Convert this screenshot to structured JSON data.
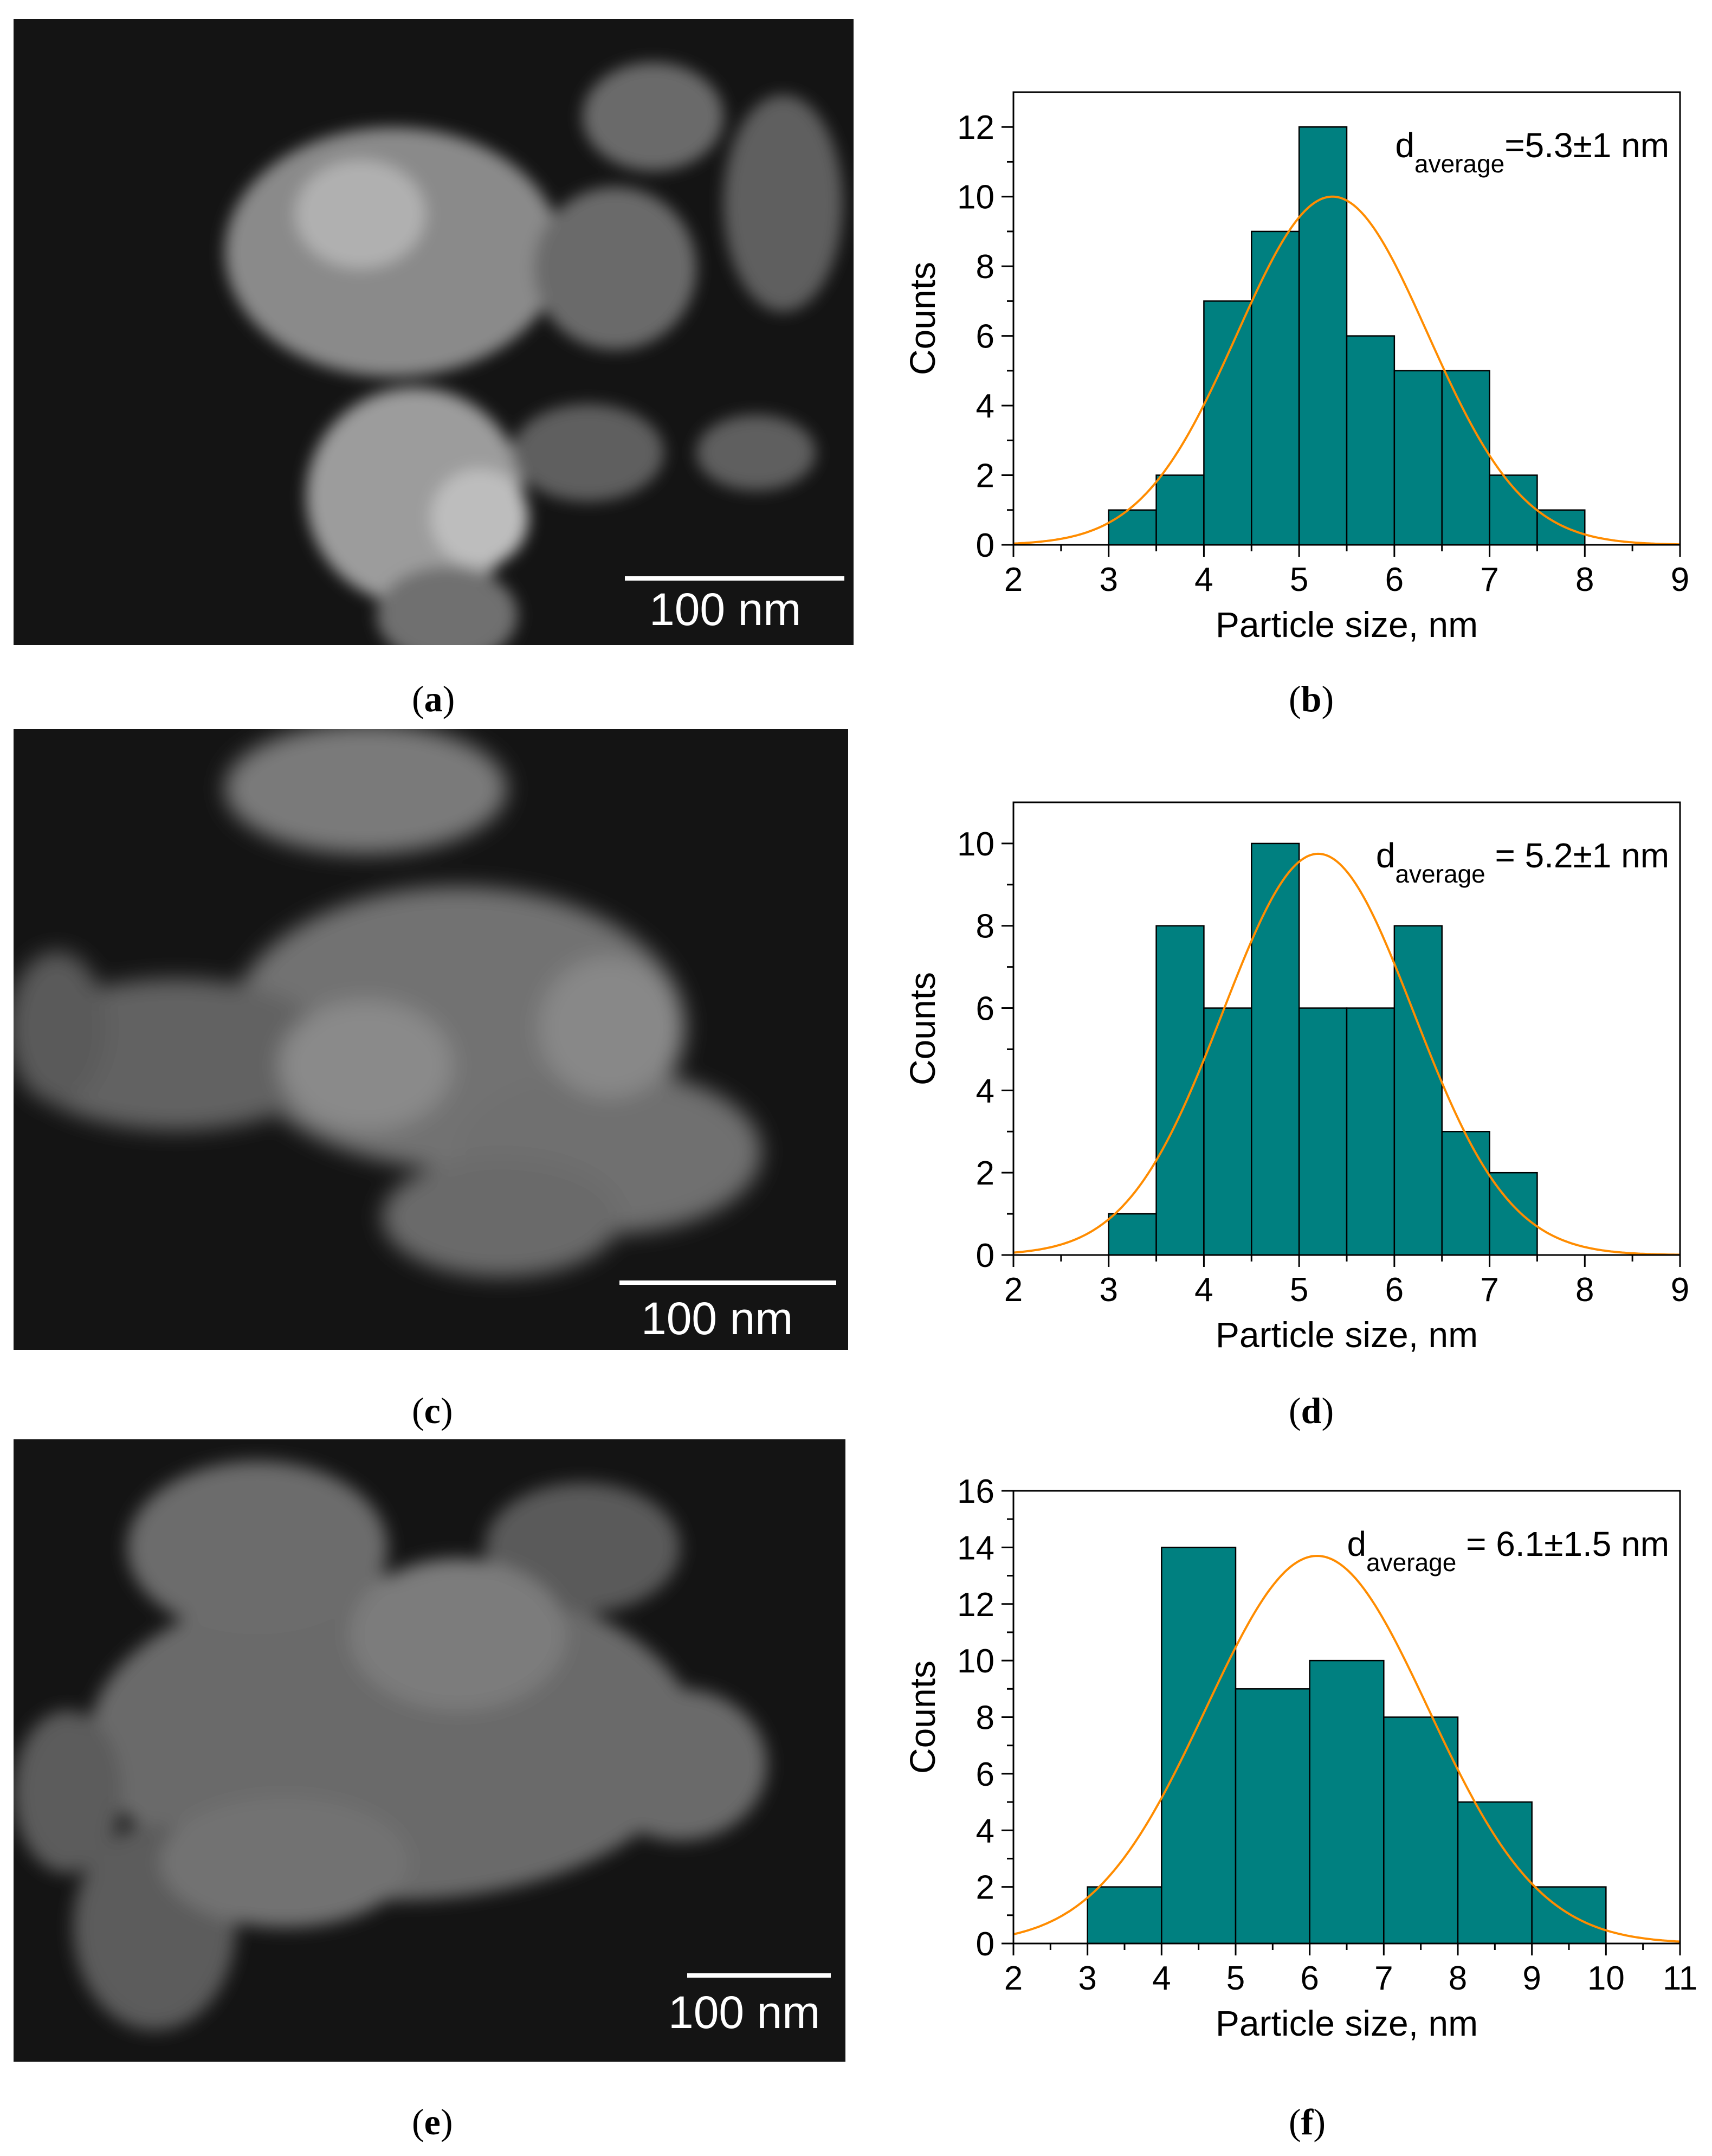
{
  "panels": [
    {
      "label": "a",
      "scale_text": "100 nm"
    },
    {
      "label": "b"
    },
    {
      "label": "c",
      "scale_text": "100 nm"
    },
    {
      "label": "d"
    },
    {
      "label": "e",
      "scale_text": "100 nm"
    },
    {
      "label": "f"
    }
  ],
  "chart_data": [
    {
      "type": "bar",
      "panel": "b",
      "xlabel": "Particle size, nm",
      "ylabel": "Counts",
      "xlim": [
        2,
        9
      ],
      "ylim": [
        0,
        13
      ],
      "xticks": [
        2,
        3,
        4,
        5,
        6,
        7,
        8,
        9
      ],
      "yticks": [
        0,
        2,
        4,
        6,
        8,
        10,
        12
      ],
      "bins": [
        [
          3,
          3.5
        ],
        [
          3.5,
          4
        ],
        [
          4,
          4.5
        ],
        [
          4.5,
          5
        ],
        [
          5,
          5.5
        ],
        [
          5.5,
          6
        ],
        [
          6,
          6.5
        ],
        [
          6.5,
          7
        ],
        [
          7,
          7.5
        ],
        [
          7.5,
          8
        ]
      ],
      "values": [
        1,
        2,
        7,
        9,
        12,
        6,
        5,
        5,
        2,
        1
      ],
      "fit": {
        "type": "gaussian",
        "mean": 5.35,
        "sigma": 1.0,
        "peak": 10.0
      },
      "annotation": {
        "sym": "d",
        "sub": "average",
        "text": "=5.3±1 nm"
      },
      "colors": {
        "bar": "#008080",
        "fit": "#ff8c00"
      }
    },
    {
      "type": "bar",
      "panel": "d",
      "xlabel": "Particle size, nm",
      "ylabel": "Counts",
      "xlim": [
        2,
        9
      ],
      "ylim": [
        0,
        11
      ],
      "xticks": [
        2,
        3,
        4,
        5,
        6,
        7,
        8,
        9
      ],
      "yticks": [
        0,
        2,
        4,
        6,
        8,
        10
      ],
      "bins": [
        [
          3,
          3.5
        ],
        [
          3.5,
          4
        ],
        [
          4,
          4.5
        ],
        [
          4.5,
          5
        ],
        [
          5,
          5.5
        ],
        [
          5.5,
          6
        ],
        [
          6,
          6.5
        ],
        [
          6.5,
          7
        ],
        [
          7,
          7.5
        ]
      ],
      "values": [
        1,
        8,
        6,
        10,
        6,
        6,
        8,
        3,
        2
      ],
      "fit": {
        "type": "gaussian",
        "mean": 5.2,
        "sigma": 1.0,
        "peak": 9.75
      },
      "annotation": {
        "sym": "d",
        "sub": "average",
        "text": " = 5.2±1 nm"
      },
      "colors": {
        "bar": "#008080",
        "fit": "#ff8c00"
      }
    },
    {
      "type": "bar",
      "panel": "f",
      "xlabel": "Particle size, nm",
      "ylabel": "Counts",
      "xlim": [
        2,
        11
      ],
      "ylim": [
        0,
        16
      ],
      "xticks": [
        2,
        3,
        4,
        5,
        6,
        7,
        8,
        9,
        10,
        11
      ],
      "yticks": [
        0,
        2,
        4,
        6,
        8,
        10,
        12,
        14,
        16
      ],
      "bins": [
        [
          3,
          4
        ],
        [
          4,
          5
        ],
        [
          5,
          6
        ],
        [
          6,
          7
        ],
        [
          7,
          8
        ],
        [
          8,
          9
        ],
        [
          9,
          10
        ]
      ],
      "values": [
        2,
        14,
        9,
        10,
        8,
        5,
        2
      ],
      "fit": {
        "type": "gaussian",
        "mean": 6.1,
        "sigma": 1.5,
        "peak": 13.7
      },
      "annotation": {
        "sym": "d",
        "sub": "average",
        "text": " = 6.1±1.5 nm"
      },
      "colors": {
        "bar": "#008080",
        "fit": "#ff8c00"
      }
    }
  ]
}
